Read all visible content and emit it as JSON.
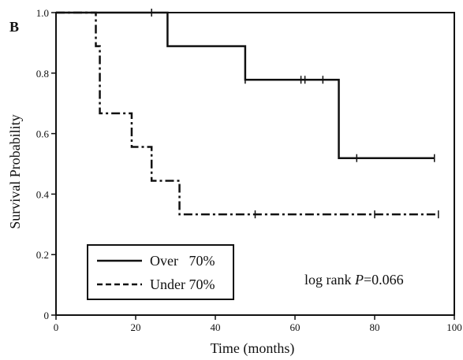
{
  "chart_data": {
    "type": "line",
    "panel_label": "B",
    "xlabel": "Time (months)",
    "ylabel": "Survival Probability",
    "xlim": [
      0,
      100
    ],
    "ylim": [
      0,
      1.0
    ],
    "xticks": [
      0,
      20,
      40,
      60,
      80,
      100
    ],
    "yticks": [
      0,
      0.2,
      0.4,
      0.6,
      0.8,
      1.0
    ],
    "xtick_labels": [
      "0",
      "20",
      "40",
      "60",
      "80",
      "100"
    ],
    "ytick_labels": [
      "0",
      "0.2",
      "0.4",
      "0.6",
      "0.8",
      "1.0"
    ],
    "grid": false,
    "legend_position": "bottom-left",
    "annotation": {
      "prefix": "log rank ",
      "variable": "P",
      "suffix": "=0.066"
    },
    "series": [
      {
        "name": "Over   70%",
        "line_style": "solid",
        "steps": [
          [
            0,
            1.0
          ],
          [
            28,
            0.889
          ],
          [
            47.5,
            0.778
          ],
          [
            71,
            0.519
          ],
          [
            95,
            0.519
          ]
        ],
        "censored": [
          [
            24,
            1.0
          ],
          [
            47.5,
            0.778
          ],
          [
            61.5,
            0.778
          ],
          [
            62.5,
            0.778
          ],
          [
            67,
            0.778
          ],
          [
            75.5,
            0.519
          ],
          [
            95,
            0.519
          ]
        ]
      },
      {
        "name": "Under 70%",
        "line_style": "dashdot",
        "steps": [
          [
            0,
            1.0
          ],
          [
            10,
            0.889
          ],
          [
            11,
            0.667
          ],
          [
            19,
            0.556
          ],
          [
            24,
            0.444
          ],
          [
            31,
            0.333
          ],
          [
            96,
            0.333
          ]
        ],
        "censored": [
          [
            50,
            0.333
          ],
          [
            80,
            0.333
          ],
          [
            96,
            0.333
          ]
        ]
      }
    ]
  }
}
